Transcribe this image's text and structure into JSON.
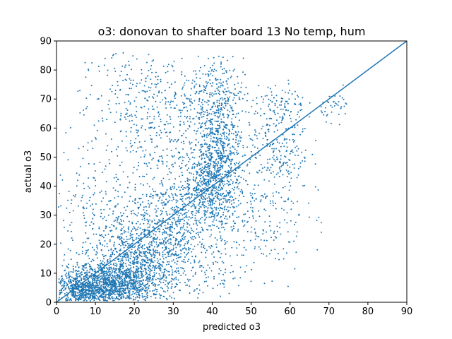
{
  "chart_data": {
    "type": "scatter",
    "title": "o3: donovan to shafter board 13 No temp, hum",
    "xlabel": "predicted o3",
    "ylabel": "actual o3",
    "xlim": [
      0,
      90
    ],
    "ylim": [
      0,
      90
    ],
    "xticks": [
      "0",
      "10",
      "20",
      "30",
      "40",
      "50",
      "60",
      "70",
      "80",
      "90"
    ],
    "yticks": [
      "0",
      "10",
      "20",
      "30",
      "40",
      "50",
      "60",
      "70",
      "80",
      "90"
    ],
    "grid": false,
    "legend": "none",
    "color": "#1f77b4",
    "reference_line": {
      "x": [
        0,
        90
      ],
      "y": [
        0,
        90
      ]
    },
    "clusters": [
      {
        "cx": 14,
        "cy": 6,
        "sx": 6,
        "sy": 4,
        "n": 1300
      },
      {
        "cx": 6,
        "cy": 4,
        "sx": 3,
        "sy": 3,
        "n": 400
      },
      {
        "cx": 22,
        "cy": 16,
        "sx": 6,
        "sy": 7,
        "n": 700
      },
      {
        "cx": 30,
        "cy": 28,
        "sx": 6,
        "sy": 8,
        "n": 500
      },
      {
        "cx": 40,
        "cy": 42,
        "sx": 3.5,
        "sy": 7,
        "n": 700
      },
      {
        "cx": 42,
        "cy": 58,
        "sx": 3,
        "sy": 6,
        "n": 300
      },
      {
        "cx": 40,
        "cy": 72,
        "sx": 4,
        "sy": 6,
        "n": 250
      },
      {
        "cx": 28,
        "cy": 58,
        "sx": 7,
        "sy": 14,
        "n": 350
      },
      {
        "cx": 18,
        "cy": 72,
        "sx": 6,
        "sy": 8,
        "n": 150
      },
      {
        "cx": 57,
        "cy": 55,
        "sx": 4,
        "sy": 9,
        "n": 250
      },
      {
        "cx": 50,
        "cy": 30,
        "sx": 7,
        "sy": 10,
        "n": 250
      },
      {
        "cx": 58,
        "cy": 68,
        "sx": 3,
        "sy": 3,
        "n": 60
      },
      {
        "cx": 72,
        "cy": 68,
        "sx": 2,
        "sy": 2.5,
        "n": 40
      },
      {
        "cx": 10,
        "cy": 28,
        "sx": 6,
        "sy": 15,
        "n": 250
      },
      {
        "cx": 35,
        "cy": 10,
        "sx": 9,
        "sy": 6,
        "n": 150
      }
    ]
  }
}
